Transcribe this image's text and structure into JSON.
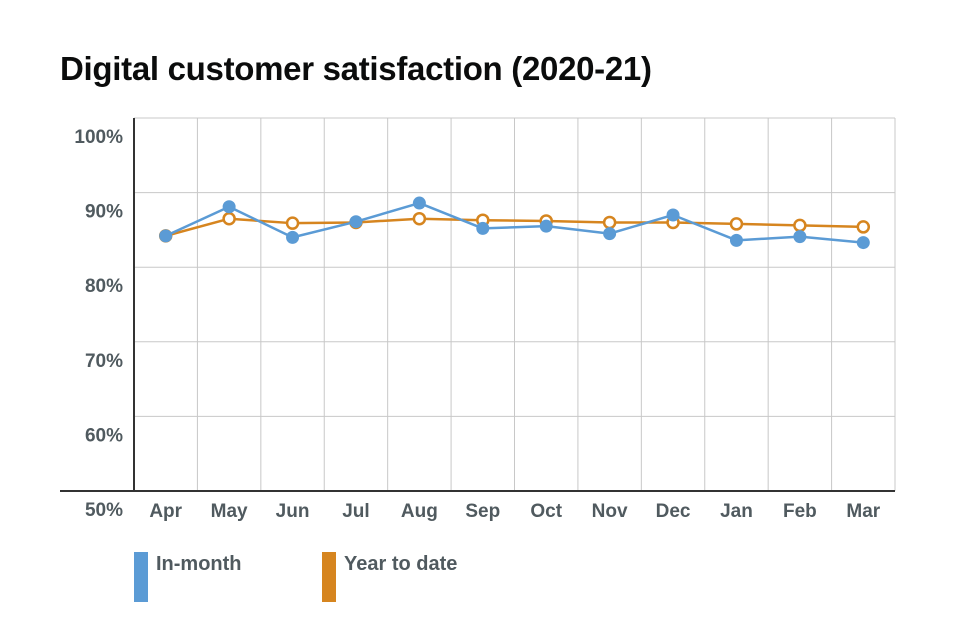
{
  "title": "Digital customer satisfaction (2020-21)",
  "colors": {
    "in_month": "#5b9bd5",
    "year_to_date": "#d6851f",
    "grid": "#c8c8c8",
    "axis": "#333333",
    "text": "#505a5f"
  },
  "chart_data": {
    "type": "line",
    "title": "Digital customer satisfaction (2020-21)",
    "xlabel": "",
    "ylabel": "",
    "categories": [
      "Apr",
      "May",
      "Jun",
      "Jul",
      "Aug",
      "Sep",
      "Oct",
      "Nov",
      "Dec",
      "Jan",
      "Feb",
      "Mar"
    ],
    "ylim": [
      50,
      100
    ],
    "yticks": [
      50,
      60,
      70,
      80,
      90,
      100
    ],
    "ytick_labels": [
      "50%",
      "60%",
      "70%",
      "80%",
      "90%",
      "100%"
    ],
    "grid": true,
    "legend_position": "bottom-left",
    "series": [
      {
        "name": "In-month",
        "marker": "filled-circle",
        "values": [
          84.2,
          88.1,
          84.0,
          86.1,
          88.6,
          85.2,
          85.5,
          84.5,
          87.0,
          83.6,
          84.1,
          83.3
        ]
      },
      {
        "name": "Year to date",
        "marker": "hollow-circle",
        "values": [
          84.2,
          86.5,
          85.9,
          86.0,
          86.5,
          86.3,
          86.2,
          86.0,
          86.0,
          85.8,
          85.6,
          85.4
        ]
      }
    ]
  }
}
